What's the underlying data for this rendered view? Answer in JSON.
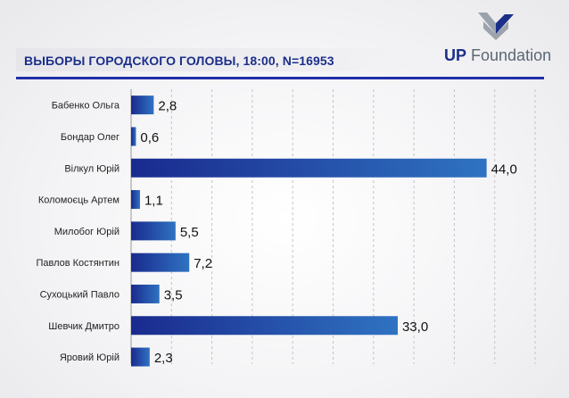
{
  "title": "ВЫБОРЫ ГОРОДСКОГО ГОЛОВЫ, 18:00, N=16953",
  "logo": {
    "bold": "UP",
    "rest": " Foundation"
  },
  "colors": {
    "brand": "#1c2f8a",
    "rule": "#2030a8",
    "bar_dark": "#1a2a8e",
    "bar_light": "#2f73c2"
  },
  "chart_data": {
    "type": "bar",
    "orientation": "horizontal",
    "title": "ВЫБОРЫ ГОРОДСКОГО ГОЛОВЫ, 18:00, N=16953",
    "xlabel": "",
    "ylabel": "",
    "xlim": [
      0,
      50
    ],
    "grid": true,
    "categories": [
      "Бабенко Ольга",
      "Бондар Олег",
      "Вілкул Юрій",
      "Коломоєць Артем",
      "Милобог Юрій",
      "Павлов Костянтин",
      "Сухоцький Павло",
      "Шевчик Дмитро",
      "Яровий Юрій"
    ],
    "values": [
      2.8,
      0.6,
      44.0,
      1.1,
      5.5,
      7.2,
      3.5,
      33.0,
      2.3
    ],
    "value_labels": [
      "2,8",
      "0,6",
      "44,0",
      "1,1",
      "5,5",
      "7,2",
      "3,5",
      "33,0",
      "2,3"
    ]
  }
}
